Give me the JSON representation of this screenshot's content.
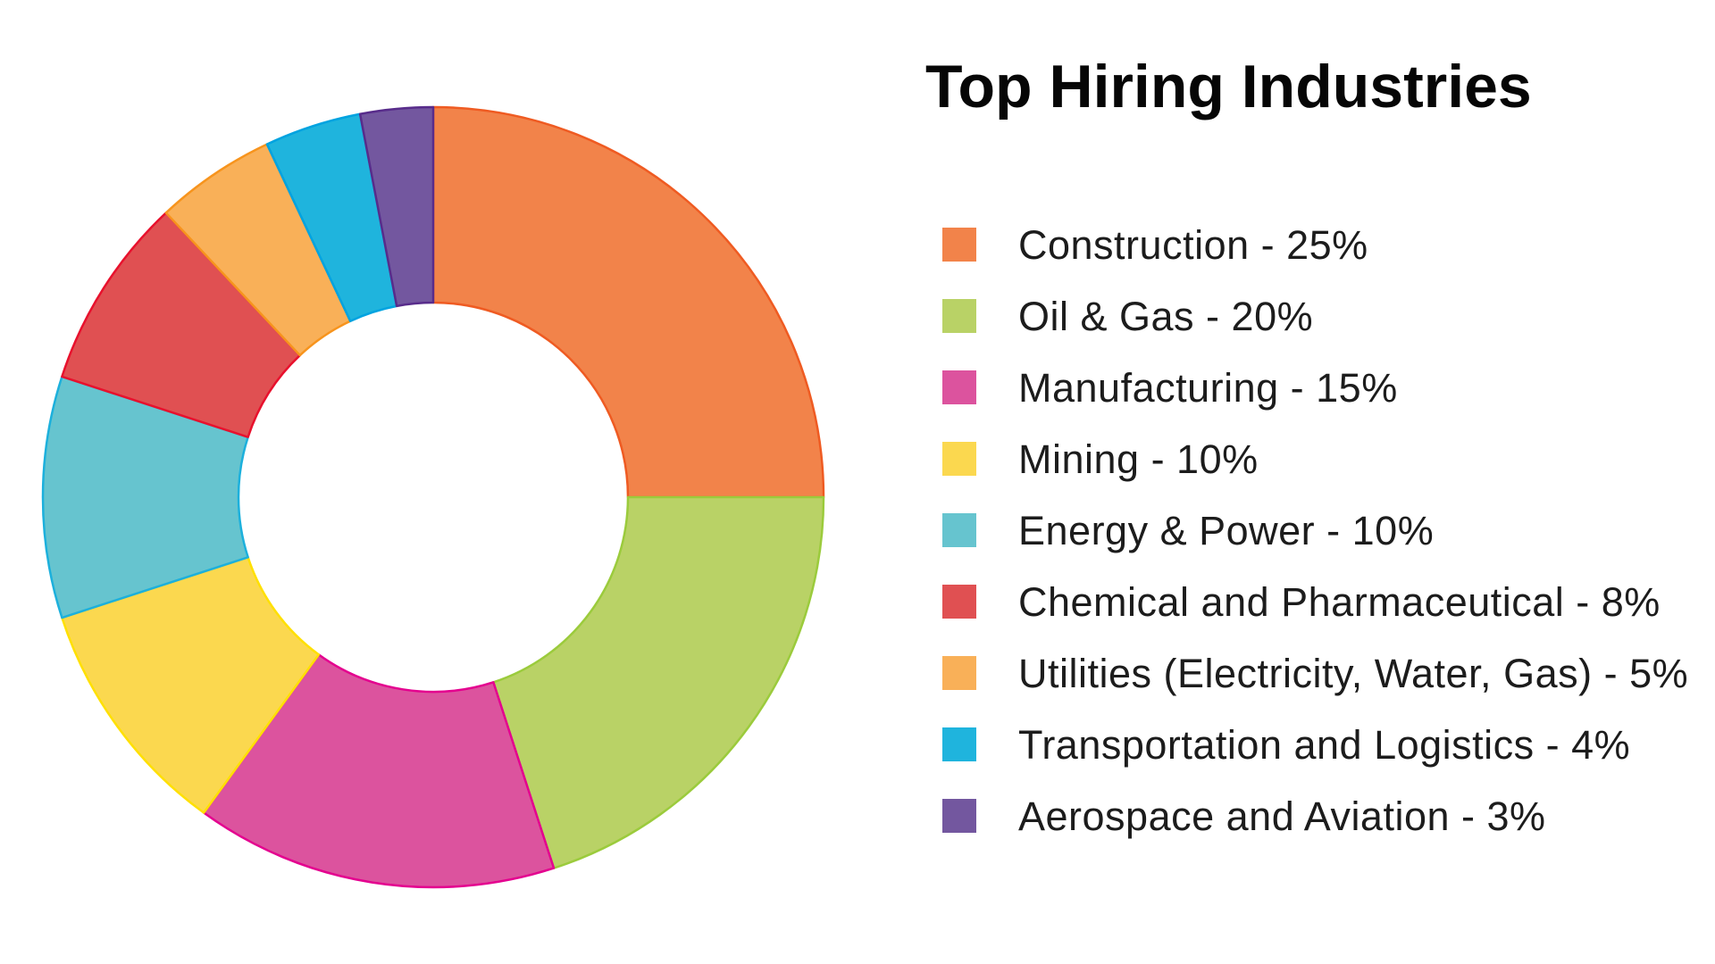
{
  "title": "Top Hiring Industries",
  "chart_data": {
    "type": "pie",
    "subtype": "donut",
    "title": "Top Hiring Industries",
    "direction": "clockwise",
    "start_angle_deg": 0,
    "inner_radius_ratio": 0.5,
    "legend_position": "right",
    "units": "%",
    "segments": [
      {
        "label": "Construction",
        "value": 25,
        "color": "#F2834A",
        "stroke": "#EF5B22"
      },
      {
        "label": "Oil & Gas",
        "value": 20,
        "color": "#B9D266",
        "stroke": "#9BCB3C"
      },
      {
        "label": "Manufacturing",
        "value": 15,
        "color": "#DC539E",
        "stroke": "#E4008F"
      },
      {
        "label": "Mining",
        "value": 10,
        "color": "#FBD84F",
        "stroke": "#FFE000"
      },
      {
        "label": "Energy & Power",
        "value": 10,
        "color": "#66C4CF",
        "stroke": "#1CB0DC"
      },
      {
        "label": "Chemical and Pharmaceutical",
        "value": 8,
        "color": "#E05052",
        "stroke": "#E8112D"
      },
      {
        "label": "Utilities (Electricity, Water, Gas)",
        "value": 5,
        "color": "#F9B058",
        "stroke": "#F7941D"
      },
      {
        "label": "Transportation and Logistics",
        "value": 4,
        "color": "#1FB4DD",
        "stroke": "#00A3E0"
      },
      {
        "label": "Aerospace and Aviation",
        "value": 3,
        "color": "#73579F",
        "stroke": "#582C8B"
      }
    ]
  },
  "legend": {
    "items": [
      {
        "label": "Construction - 25%"
      },
      {
        "label": "Oil & Gas - 20%"
      },
      {
        "label": "Manufacturing - 15%"
      },
      {
        "label": "Mining - 10%"
      },
      {
        "label": "Energy & Power - 10%"
      },
      {
        "label": "Chemical and Pharmaceutical - 8%"
      },
      {
        "label": "Utilities (Electricity, Water, Gas) - 5%"
      },
      {
        "label": "Transportation and Logistics - 4%"
      },
      {
        "label": "Aerospace and Aviation - 3%"
      }
    ]
  }
}
